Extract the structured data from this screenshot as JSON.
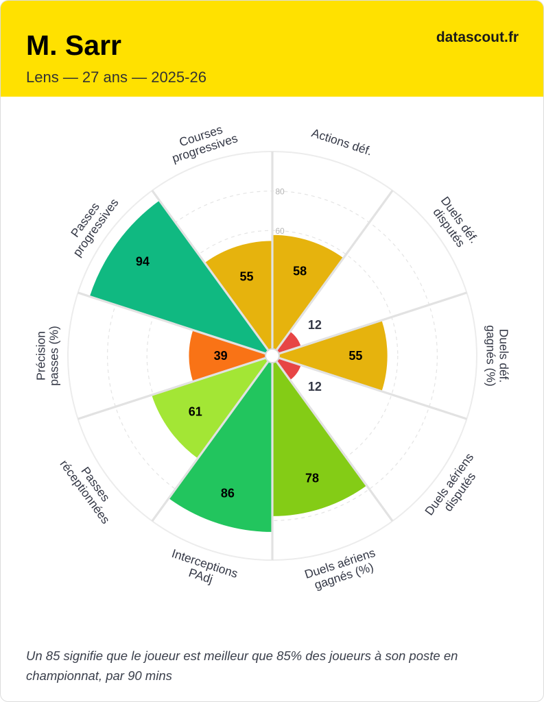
{
  "header": {
    "player_name": "M. Sarr",
    "meta": "Lens — 27 ans — 2025-26",
    "brand": "datascout.fr",
    "background": "#ffe100"
  },
  "chart_data": {
    "type": "polar-bar",
    "rlim": [
      0,
      100
    ],
    "ticks": [
      {
        "value": 60,
        "label": "60"
      },
      {
        "value": 80,
        "label": "80"
      }
    ],
    "categories": [
      {
        "label": [
          "Actions déf."
        ],
        "value": 58,
        "color": "#e6b30d",
        "label_color": "#000000"
      },
      {
        "label": [
          "Duels déf.",
          "disputés"
        ],
        "value": 12,
        "color": "#e74545",
        "label_color": "#333745"
      },
      {
        "label": [
          "Duels déf.",
          "gagnés (%)"
        ],
        "value": 55,
        "color": "#e6b30d",
        "label_color": "#000000"
      },
      {
        "label": [
          "Duels aériens",
          "disputés"
        ],
        "value": 12,
        "color": "#e74545",
        "label_color": "#333745"
      },
      {
        "label": [
          "Duels aériens",
          "gagnés (%)"
        ],
        "value": 78,
        "color": "#84cc16",
        "label_color": "#000000"
      },
      {
        "label": [
          "Interceptions",
          "PAdj"
        ],
        "value": 86,
        "color": "#22c55e",
        "label_color": "#000000"
      },
      {
        "label": [
          "Passes",
          "réceptionnées"
        ],
        "value": 61,
        "color": "#a3e635",
        "label_color": "#000000"
      },
      {
        "label": [
          "Précision",
          "passes (%)"
        ],
        "value": 39,
        "color": "#f97316",
        "label_color": "#000000"
      },
      {
        "label": [
          "Passes",
          "progressives"
        ],
        "value": 94,
        "color": "#10b981",
        "label_color": "#000000"
      },
      {
        "label": [
          "Courses",
          "progressives"
        ],
        "value": 55,
        "color": "#e6b30d",
        "label_color": "#000000"
      }
    ]
  },
  "footer": {
    "note": "Un 85 signifie que le joueur est meilleur que 85% des joueurs à son poste en championnat, par 90 mins"
  }
}
